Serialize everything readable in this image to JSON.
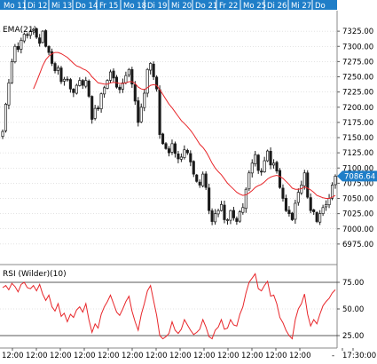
{
  "colors": {
    "date_band": "#1f7ec8",
    "date_text": "#ffffff",
    "candle": "#1a1a1a",
    "ema": "#e8262a",
    "rsi": "#e8262a",
    "grid": "#c8c8c8",
    "price_marker_bg": "#1f7ec8",
    "price_marker_text": "#ffffff"
  },
  "date_labels": [
    "Mo 11",
    "Di 12",
    "Mi 13",
    "Do 14",
    "Fr 15",
    "Mo 18",
    "Di 19",
    "Mi 20",
    "Do 21",
    "Fr 22",
    "Mo 25",
    "Di 26",
    "Mi 27",
    "Do"
  ],
  "time_labels": [
    "12:00",
    "12:00",
    "12:00",
    "12:00",
    "12:00",
    "12:00",
    "12:00",
    "12:00",
    "12:00",
    "12:00",
    "12:00",
    "12:00",
    "12:00",
    "-",
    "17:30:00"
  ],
  "chart_data": [
    {
      "type": "candlestick",
      "indicator_label": "EMA(21)",
      "ylim": [
        6950,
        7350
      ],
      "y_ticks": [
        "7325.00",
        "7300.00",
        "7275.00",
        "7250.00",
        "7225.00",
        "7200.00",
        "7175.00",
        "7150.00",
        "7125.00",
        "7100.00",
        "7075.00",
        "7050.00",
        "7025.00",
        "7000.00",
        "6975.00"
      ],
      "last_price_label": "7086.64",
      "last_price": 7086.64,
      "close": [
        7160,
        7205,
        7240,
        7275,
        7300,
        7295,
        7310,
        7320,
        7318,
        7325,
        7328,
        7315,
        7305,
        7325,
        7300,
        7290,
        7272,
        7260,
        7265,
        7242,
        7246,
        7245,
        7230,
        7224,
        7236,
        7244,
        7236,
        7244,
        7218,
        7180,
        7198,
        7198,
        7222,
        7232,
        7244,
        7258,
        7248,
        7233,
        7229,
        7240,
        7252,
        7262,
        7238,
        7210,
        7175,
        7200,
        7223,
        7262,
        7272,
        7250,
        7230,
        7155,
        7140,
        7132,
        7125,
        7140,
        7124,
        7115,
        7118,
        7130,
        7125,
        7110,
        7090,
        7078,
        7072,
        7090,
        7068,
        7030,
        7012,
        7025,
        7030,
        7040,
        7015,
        7015,
        7030,
        7018,
        7012,
        7028,
        7035,
        7065,
        7092,
        7108,
        7122,
        7096,
        7094,
        7112,
        7128,
        7105,
        7108,
        7095,
        7068,
        7050,
        7030,
        7025,
        7015,
        7042,
        7060,
        7072,
        7092,
        7052,
        7030,
        7028,
        7012,
        7025,
        7035,
        7040,
        7050,
        7072,
        7086.64
      ],
      "ema": [
        null,
        null,
        null,
        null,
        null,
        null,
        null,
        null,
        null,
        null,
        7230,
        7242,
        7255,
        7268,
        7278,
        7284,
        7288,
        7290,
        7290,
        7288,
        7285,
        7282,
        7277,
        7272,
        7268,
        7266,
        7263,
        7261,
        7257,
        7250,
        7245,
        7240,
        7239,
        7238,
        7238,
        7240,
        7241,
        7240,
        7239,
        7239,
        7240,
        7242,
        7242,
        7239,
        7233,
        7230,
        7229,
        7232,
        7236,
        7237,
        7236,
        7229,
        7221,
        7213,
        7205,
        7199,
        7192,
        7185,
        7178,
        7173,
        7168,
        7162,
        7155,
        7147,
        7139,
        7134,
        7127,
        7118,
        7108,
        7100,
        7094,
        7089,
        7082,
        7075,
        7070,
        7065,
        7060,
        7057,
        7055,
        7056,
        7059,
        7063,
        7068,
        7071,
        7073,
        7077,
        7082,
        7085,
        7087,
        7088,
        7086,
        7083,
        7078,
        7073,
        7067,
        7065,
        7065,
        7066,
        7069,
        7067,
        7064,
        7060,
        7055,
        7053,
        7051,
        7050,
        7050,
        7052,
        7055
      ]
    },
    {
      "type": "line",
      "indicator_label": "RSI (Wilder)(10)",
      "ylim": [
        15,
        90
      ],
      "y_ticks": [
        "75.00",
        "50.00",
        "25.00"
      ],
      "reference_lines": [
        75,
        25
      ],
      "rsi": [
        70,
        72,
        68,
        74,
        71,
        66,
        73,
        75,
        70,
        69,
        72,
        67,
        73,
        64,
        58,
        63,
        52,
        48,
        55,
        43,
        46,
        38,
        45,
        42,
        49,
        52,
        47,
        55,
        40,
        28,
        36,
        32,
        45,
        52,
        57,
        63,
        55,
        47,
        44,
        50,
        57,
        62,
        48,
        38,
        30,
        45,
        55,
        67,
        72,
        58,
        44,
        25,
        22,
        24,
        27,
        38,
        30,
        27,
        31,
        40,
        35,
        30,
        26,
        28,
        31,
        40,
        33,
        24,
        22,
        30,
        33,
        40,
        31,
        32,
        40,
        35,
        34,
        45,
        52,
        65,
        75,
        79,
        83,
        69,
        67,
        72,
        76,
        62,
        63,
        55,
        42,
        37,
        30,
        25,
        22,
        40,
        50,
        55,
        64,
        45,
        34,
        40,
        36,
        45,
        53,
        57,
        60,
        65,
        68
      ]
    }
  ]
}
